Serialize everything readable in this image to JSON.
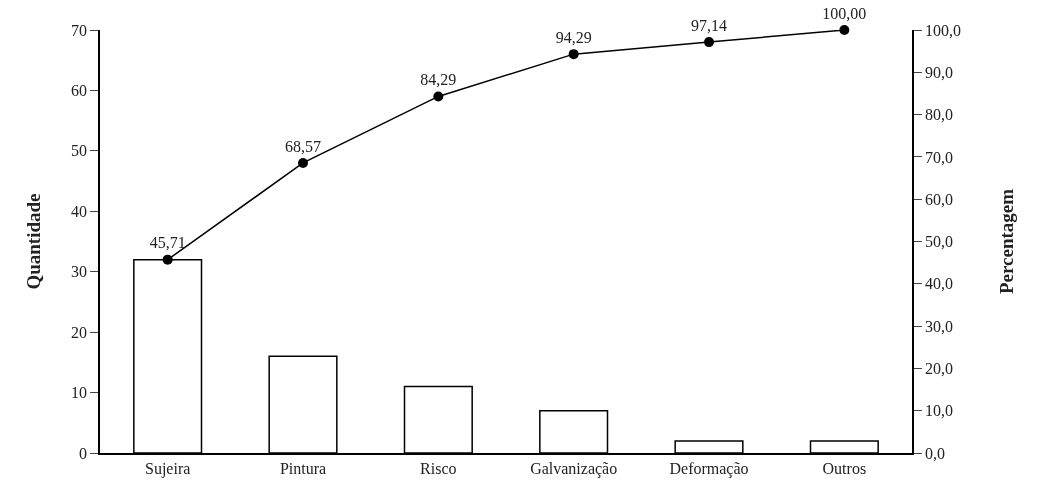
{
  "chart_data": {
    "type": "bar",
    "categories": [
      "Sujeira",
      "Pintura",
      "Risco",
      "Galvanização",
      "Deformação",
      "Outros"
    ],
    "ylabel": "Quantidade",
    "y2label": "Percentagem",
    "series": [
      {
        "color": "#ffffff",
        "values": [
          32,
          16,
          11,
          7,
          2,
          2
        ]
      },
      {
        "type": "line",
        "axis": "y2",
        "color": "#000000",
        "marker": "circle",
        "line_style": "solid",
        "values": [
          45.71,
          68.57,
          84.29,
          94.29,
          97.14,
          100.0
        ],
        "value_labels": [
          "45,71",
          "68,57",
          "84,29",
          "94,29",
          "97,14",
          "100,00"
        ]
      }
    ],
    "ylim": [
      0,
      70
    ],
    "yticks": [
      0,
      10,
      20,
      30,
      40,
      50,
      60,
      70
    ],
    "y2lim": [
      0,
      100
    ],
    "y2ticks": [
      {
        "value": 0,
        "label": "0,0"
      },
      {
        "value": 10,
        "label": "10,0"
      },
      {
        "value": 20,
        "label": "20,0"
      },
      {
        "value": 30,
        "label": "30,0"
      },
      {
        "value": 40,
        "label": "40,0"
      },
      {
        "value": 50,
        "label": "50,0"
      },
      {
        "value": 60,
        "label": "60,0"
      },
      {
        "value": 70,
        "label": "70,0"
      },
      {
        "value": 80,
        "label": "80,0"
      },
      {
        "value": 90,
        "label": "90,0"
      },
      {
        "value": 100,
        "label": "100,0"
      }
    ],
    "grid": false
  }
}
